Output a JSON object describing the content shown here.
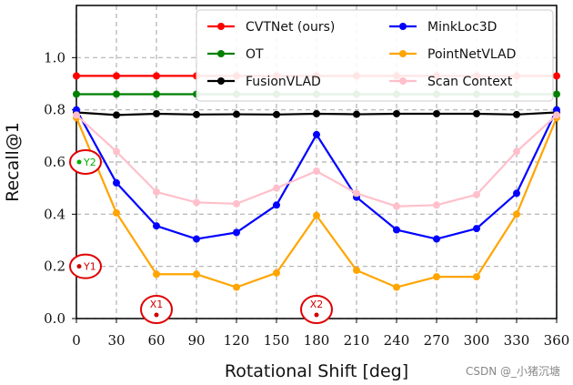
{
  "chart_data": {
    "type": "line",
    "xlabel": "Rotational Shift [deg]",
    "ylabel": "Recall@1",
    "x": [
      0,
      30,
      60,
      90,
      120,
      150,
      180,
      210,
      240,
      270,
      300,
      330,
      360
    ],
    "xticks": [
      "0",
      "30",
      "60",
      "90",
      "120",
      "150",
      "180",
      "210",
      "240",
      "270",
      "300",
      "330",
      "360"
    ],
    "yticks": [
      "0.0",
      "0.2",
      "0.4",
      "0.6",
      "0.8",
      "1.0"
    ],
    "xlim": [
      0,
      360
    ],
    "ylim": [
      0,
      1.2
    ],
    "grid": true,
    "legend_position": "top-right",
    "series": [
      {
        "name": "CVTNet (ours)",
        "color": "#ff0000",
        "values": [
          0.93,
          0.93,
          0.93,
          0.93,
          0.93,
          0.93,
          0.93,
          0.93,
          0.93,
          0.93,
          0.93,
          0.93,
          0.93
        ]
      },
      {
        "name": "OT",
        "color": "#008000",
        "values": [
          0.86,
          0.86,
          0.86,
          0.86,
          0.86,
          0.86,
          0.86,
          0.86,
          0.86,
          0.86,
          0.86,
          0.86,
          0.86
        ]
      },
      {
        "name": "FusionVLAD",
        "color": "#000000",
        "values": [
          0.79,
          0.78,
          0.785,
          0.782,
          0.783,
          0.782,
          0.785,
          0.783,
          0.785,
          0.785,
          0.785,
          0.782,
          0.79
        ]
      },
      {
        "name": "MinkLoc3D",
        "color": "#0000ff",
        "values": [
          0.8,
          0.52,
          0.355,
          0.305,
          0.33,
          0.435,
          0.705,
          0.465,
          0.34,
          0.305,
          0.345,
          0.48,
          0.8
        ]
      },
      {
        "name": "PointNetVLAD",
        "color": "#ffa500",
        "values": [
          0.77,
          0.405,
          0.17,
          0.17,
          0.12,
          0.175,
          0.395,
          0.185,
          0.12,
          0.16,
          0.16,
          0.4,
          0.77
        ]
      },
      {
        "name": "Scan Context",
        "color": "#ffc0cb",
        "values": [
          0.78,
          0.64,
          0.485,
          0.445,
          0.44,
          0.5,
          0.565,
          0.48,
          0.43,
          0.435,
          0.475,
          0.64,
          0.78
        ]
      }
    ],
    "annotations": [
      {
        "label": "Y2",
        "x": 0,
        "y": 0.6,
        "color": "#00b000"
      },
      {
        "label": "Y1",
        "x": 0,
        "y": 0.2,
        "color": "#cc0000"
      },
      {
        "label": "X1",
        "x": 60,
        "y": 0.0,
        "color": "#cc0000"
      },
      {
        "label": "X2",
        "x": 180,
        "y": 0.0,
        "color": "#cc0000"
      }
    ]
  },
  "watermark": "CSDN @_小猪沉塘"
}
